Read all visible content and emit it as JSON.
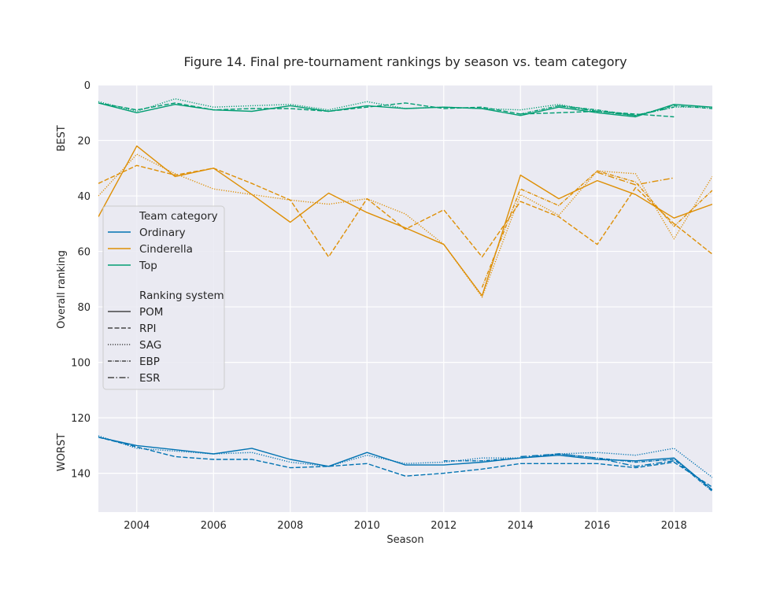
{
  "chart_data": {
    "type": "line",
    "title": "Figure 14. Final pre-tournament rankings by season vs. team category",
    "xlabel": "Season",
    "ylabel": "Overall ranking",
    "ylabel_top": "BEST",
    "ylabel_bottom": "WORST",
    "xlim": [
      2003,
      2019
    ],
    "ylim": [
      0,
      154
    ],
    "y_inverted": true,
    "grid": true,
    "xticks": [
      2004,
      2006,
      2008,
      2010,
      2012,
      2014,
      2016,
      2018
    ],
    "yticks": [
      0,
      20,
      40,
      60,
      80,
      100,
      120,
      140
    ],
    "legend": {
      "placement": "center-left",
      "hue_title": "Team category",
      "style_title": "Ranking system",
      "hue_entries": [
        {
          "label": "Ordinary",
          "color": "#0173b2"
        },
        {
          "label": "Cinderella",
          "color": "#de8f05"
        },
        {
          "label": "Top",
          "color": "#029e73"
        }
      ],
      "style_entries": [
        {
          "label": "POM",
          "dash": "solid"
        },
        {
          "label": "RPI",
          "dash": "dashed"
        },
        {
          "label": "SAG",
          "dash": "dotted"
        },
        {
          "label": "EBP",
          "dash": "dashdot-dense"
        },
        {
          "label": "ESR",
          "dash": "dashdot"
        }
      ]
    },
    "series": [
      {
        "category": "Top",
        "system": "POM",
        "x": [
          2003,
          2004,
          2005,
          2006,
          2007,
          2008,
          2009,
          2010,
          2011,
          2012,
          2013,
          2014,
          2015,
          2016,
          2017,
          2018,
          2019
        ],
        "y": [
          6.5,
          10,
          7,
          9,
          9.5,
          7.5,
          9.5,
          7.5,
          8.5,
          8,
          8.5,
          11,
          8,
          10,
          11.5,
          7,
          8
        ]
      },
      {
        "category": "Top",
        "system": "RPI",
        "x": [
          2003,
          2004,
          2005,
          2006,
          2007,
          2008,
          2009,
          2010,
          2011,
          2012,
          2013,
          2014,
          2015,
          2016,
          2017,
          2018
        ],
        "y": [
          6.5,
          9,
          6.5,
          9,
          8.5,
          8.5,
          9.5,
          8,
          6.5,
          8.5,
          8,
          10.5,
          10,
          9.5,
          10.5,
          11.5
        ]
      },
      {
        "category": "Top",
        "system": "SAG",
        "x": [
          2003,
          2004,
          2005,
          2006,
          2007,
          2008,
          2009,
          2010,
          2011,
          2012,
          2013,
          2014,
          2015,
          2016,
          2017,
          2018,
          2019
        ],
        "y": [
          6,
          9.5,
          5,
          8,
          7.5,
          7,
          9,
          6,
          8.5,
          8,
          8.5,
          9,
          7,
          9.5,
          11,
          8,
          8
        ]
      },
      {
        "category": "Top",
        "system": "EBP",
        "x": [
          2014,
          2015,
          2016,
          2017,
          2018,
          2019
        ],
        "y": [
          10.5,
          7.5,
          9,
          11,
          7.5,
          8.5
        ]
      },
      {
        "category": "Top",
        "system": "ESR",
        "x": [
          2015,
          2016,
          2017,
          2018
        ],
        "y": [
          7.5,
          9.5,
          11,
          8
        ]
      },
      {
        "category": "Cinderella",
        "system": "POM",
        "x": [
          2003,
          2004,
          2005,
          2006,
          2007,
          2008,
          2009,
          2010,
          2011,
          2012,
          2013,
          2014,
          2015,
          2016,
          2017,
          2018,
          2019
        ],
        "y": [
          47.5,
          22,
          33,
          30,
          39.5,
          49.5,
          39,
          46,
          51.5,
          57.5,
          76,
          32.5,
          41,
          34.5,
          39.5,
          48,
          43
        ]
      },
      {
        "category": "Cinderella",
        "system": "RPI",
        "x": [
          2003,
          2004,
          2005,
          2006,
          2007,
          2008,
          2009,
          2010,
          2011,
          2012,
          2013,
          2014,
          2015,
          2016,
          2017,
          2018,
          2019
        ],
        "y": [
          35.5,
          29,
          32.5,
          30,
          35.5,
          41.5,
          62,
          41,
          52,
          45,
          62,
          42,
          47.5,
          57.5,
          37,
          50,
          61
        ]
      },
      {
        "category": "Cinderella",
        "system": "SAG",
        "x": [
          2003,
          2004,
          2005,
          2006,
          2007,
          2008,
          2009,
          2010,
          2011,
          2012,
          2013,
          2014,
          2015,
          2016,
          2017,
          2018,
          2019
        ],
        "y": [
          40,
          25,
          32,
          37.5,
          39.5,
          41.5,
          43,
          41,
          46.5,
          57.5,
          76.5,
          39.5,
          47,
          31,
          32,
          55.5,
          33
        ]
      },
      {
        "category": "Cinderella",
        "system": "EBP",
        "x": [
          2013,
          2014,
          2015,
          2016,
          2017,
          2018,
          2019
        ],
        "y": [
          73,
          37.5,
          43.5,
          31,
          35,
          51,
          38
        ]
      },
      {
        "category": "Cinderella",
        "system": "ESR",
        "x": [
          2016,
          2017,
          2018
        ],
        "y": [
          31.5,
          36,
          33.5
        ]
      },
      {
        "category": "Ordinary",
        "system": "POM",
        "x": [
          2003,
          2004,
          2005,
          2006,
          2007,
          2008,
          2009,
          2010,
          2011,
          2012,
          2013,
          2014,
          2015,
          2016,
          2017,
          2018,
          2019
        ],
        "y": [
          127,
          130,
          131.5,
          133,
          131,
          135,
          137.5,
          132.5,
          137,
          137,
          136,
          134.5,
          133.5,
          135,
          135.5,
          134.5,
          146
        ]
      },
      {
        "category": "Ordinary",
        "system": "RPI",
        "x": [
          2003,
          2004,
          2005,
          2006,
          2007,
          2008,
          2009,
          2010,
          2011,
          2012,
          2013,
          2014,
          2015,
          2016,
          2017,
          2018,
          2019
        ],
        "y": [
          127,
          130.5,
          134,
          135,
          135,
          138,
          137.5,
          136.5,
          141,
          140,
          138.5,
          136.5,
          136.5,
          136.5,
          138,
          136,
          145
        ]
      },
      {
        "category": "Ordinary",
        "system": "SAG",
        "x": [
          2003,
          2004,
          2005,
          2006,
          2007,
          2008,
          2009,
          2010,
          2011,
          2012,
          2013,
          2014,
          2015,
          2016,
          2017,
          2018,
          2019
        ],
        "y": [
          126.5,
          131,
          132,
          133,
          132.5,
          136,
          137.5,
          133.5,
          136.5,
          136,
          134.5,
          134.5,
          133,
          132.5,
          133.5,
          131,
          141.5
        ]
      },
      {
        "category": "Ordinary",
        "system": "EBP",
        "x": [
          2012,
          2013,
          2014,
          2015,
          2016,
          2017,
          2018,
          2019
        ],
        "y": [
          135.5,
          135.5,
          134.5,
          133,
          134.5,
          136,
          135,
          146.5
        ]
      },
      {
        "category": "Ordinary",
        "system": "ESR",
        "x": [
          2014,
          2015,
          2016,
          2017,
          2018
        ],
        "y": [
          134,
          133,
          134.5,
          137.5,
          135.5
        ]
      }
    ]
  }
}
